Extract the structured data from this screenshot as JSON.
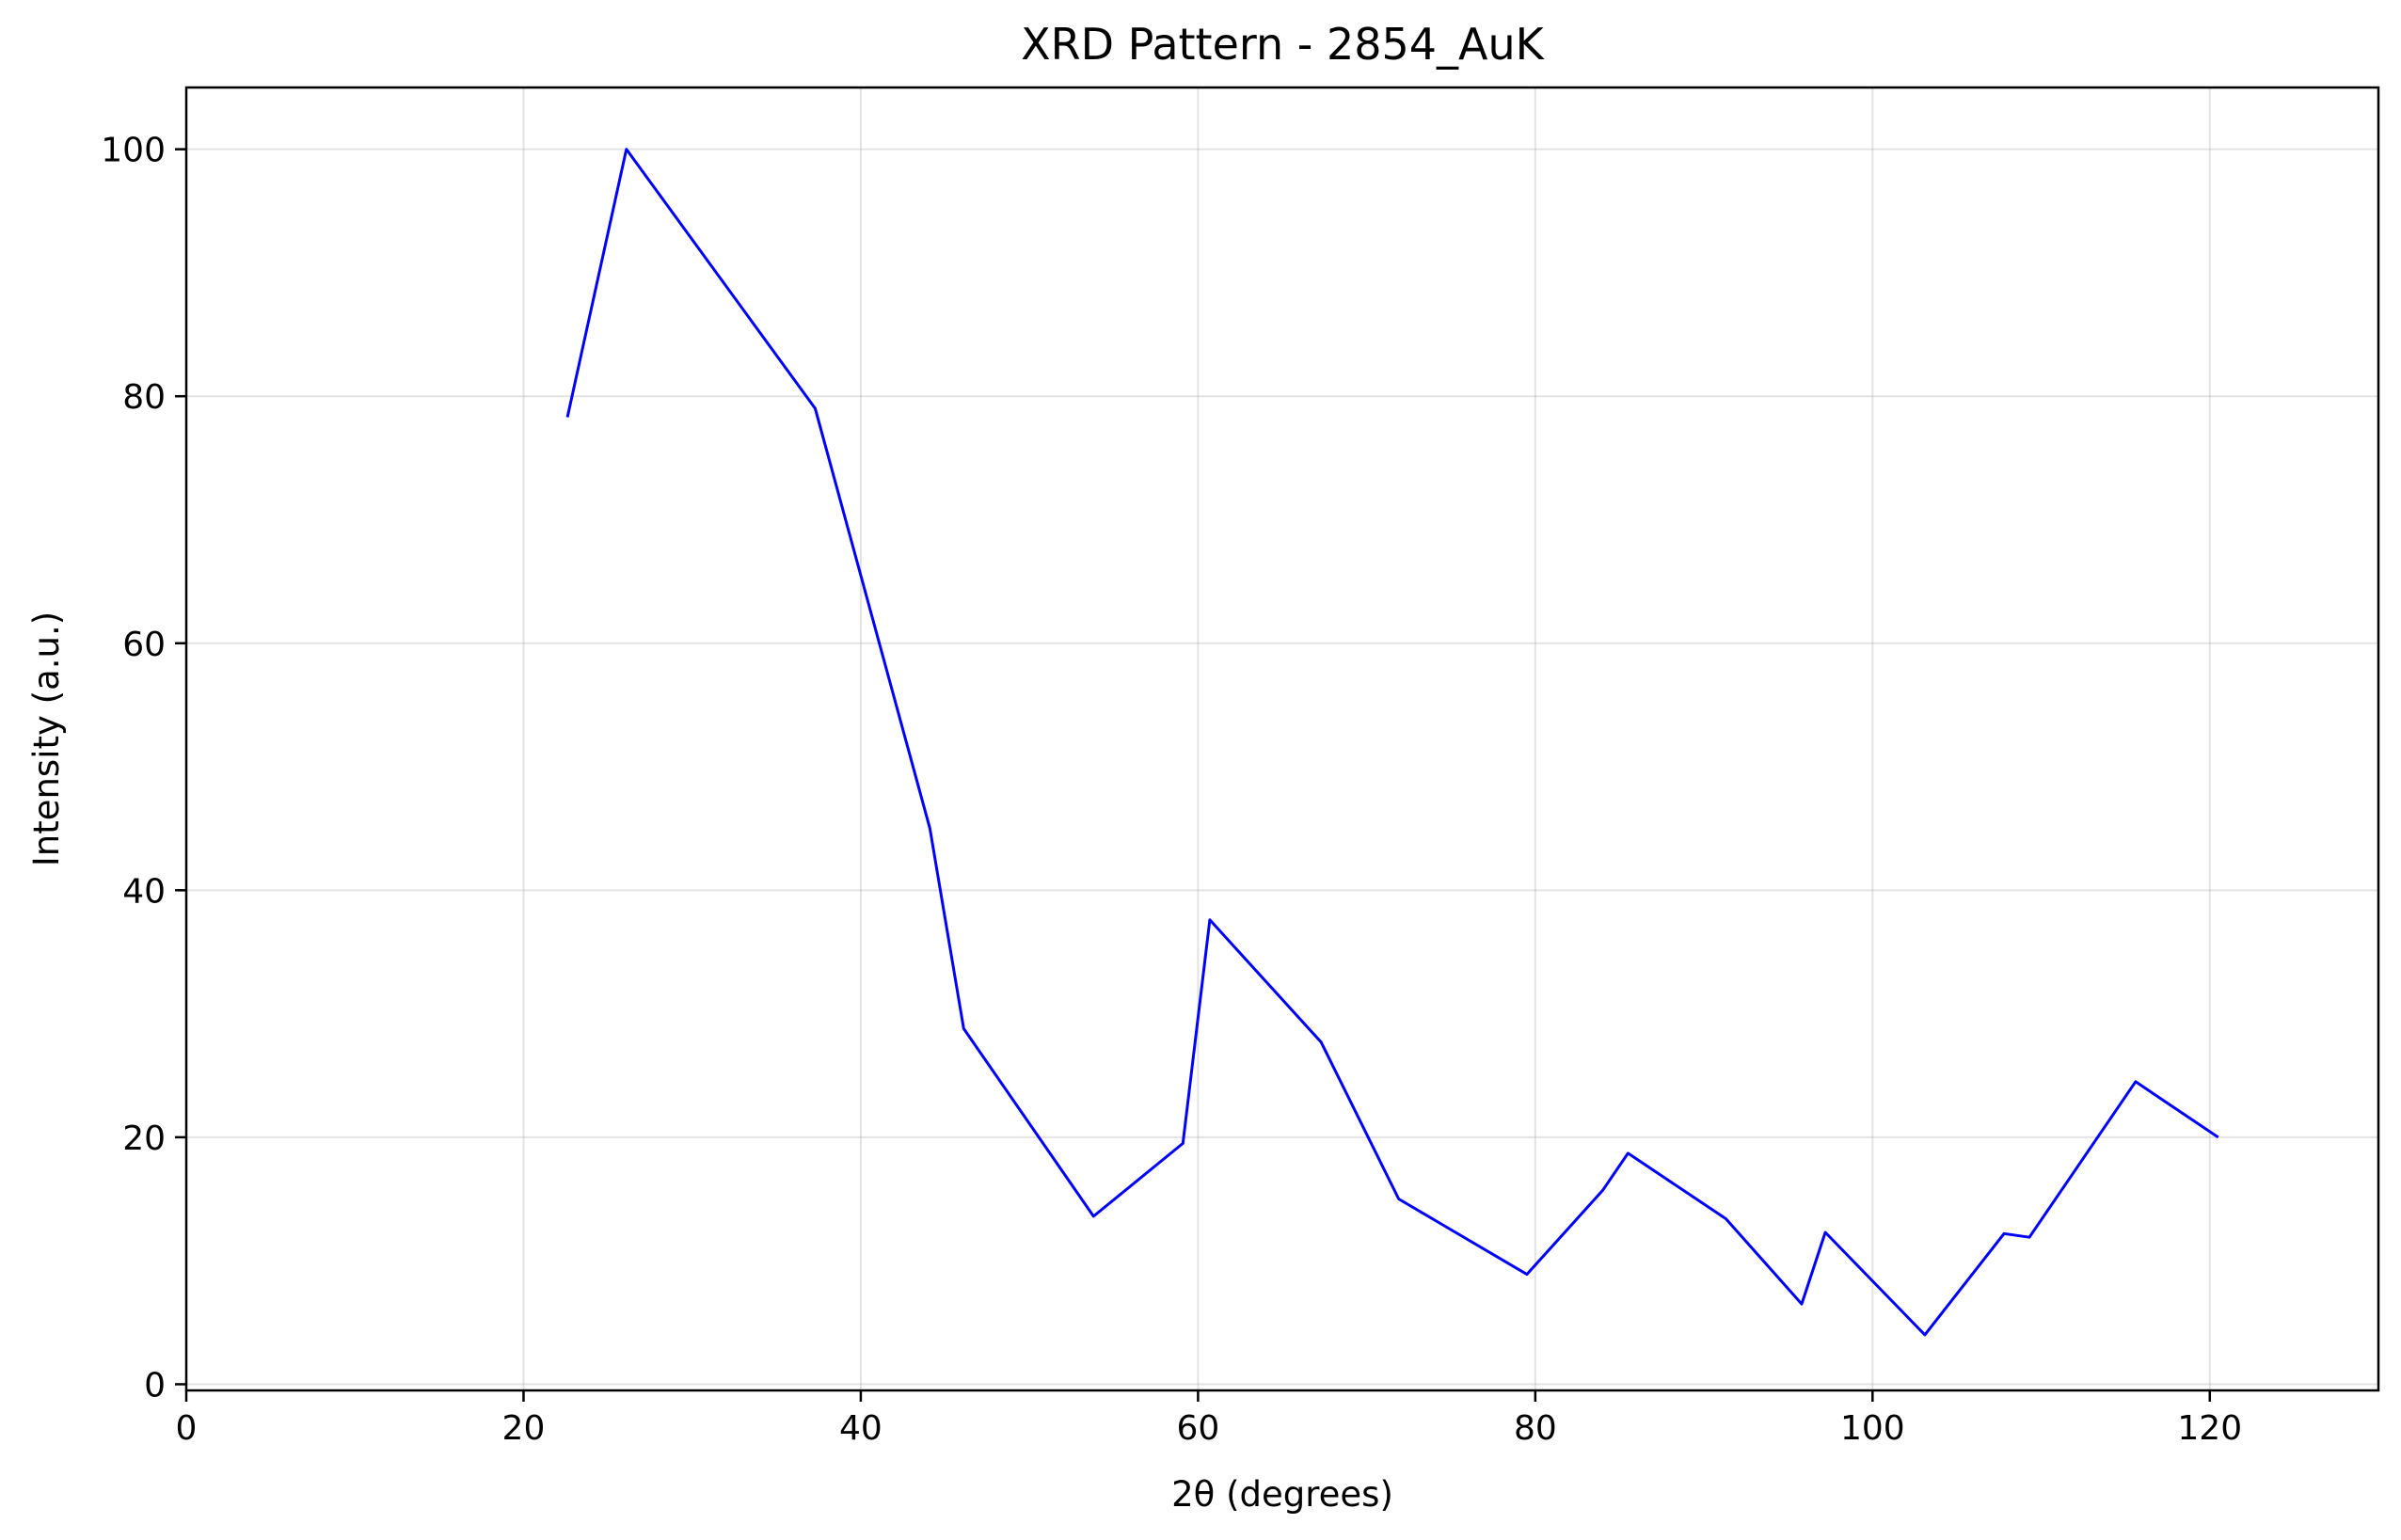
{
  "chart_data": {
    "type": "line",
    "title": "XRD Pattern - 2854_AuK",
    "xlabel": "2θ (degrees)",
    "ylabel": "Intensity (a.u.)",
    "xlim": [
      0,
      130
    ],
    "ylim": [
      -0.5,
      105
    ],
    "xticks": [
      0,
      20,
      40,
      60,
      80,
      100,
      120
    ],
    "yticks": [
      0,
      20,
      40,
      60,
      80,
      100
    ],
    "grid": true,
    "series": [
      {
        "color": "#0000ff",
        "x": [
          22.6,
          26.1,
          37.3,
          44.1,
          46.1,
          53.8,
          59.1,
          60.7,
          67.3,
          71.9,
          79.5,
          84.0,
          85.5,
          91.3,
          95.8,
          97.2,
          103.1,
          107.8,
          109.3,
          115.6,
          120.5
        ],
        "y": [
          78.3,
          100.0,
          79.0,
          45.0,
          28.8,
          13.6,
          19.5,
          37.6,
          27.7,
          15.0,
          8.9,
          15.7,
          18.7,
          13.4,
          6.5,
          12.3,
          4.0,
          12.2,
          11.9,
          24.5,
          20.0
        ]
      }
    ]
  }
}
